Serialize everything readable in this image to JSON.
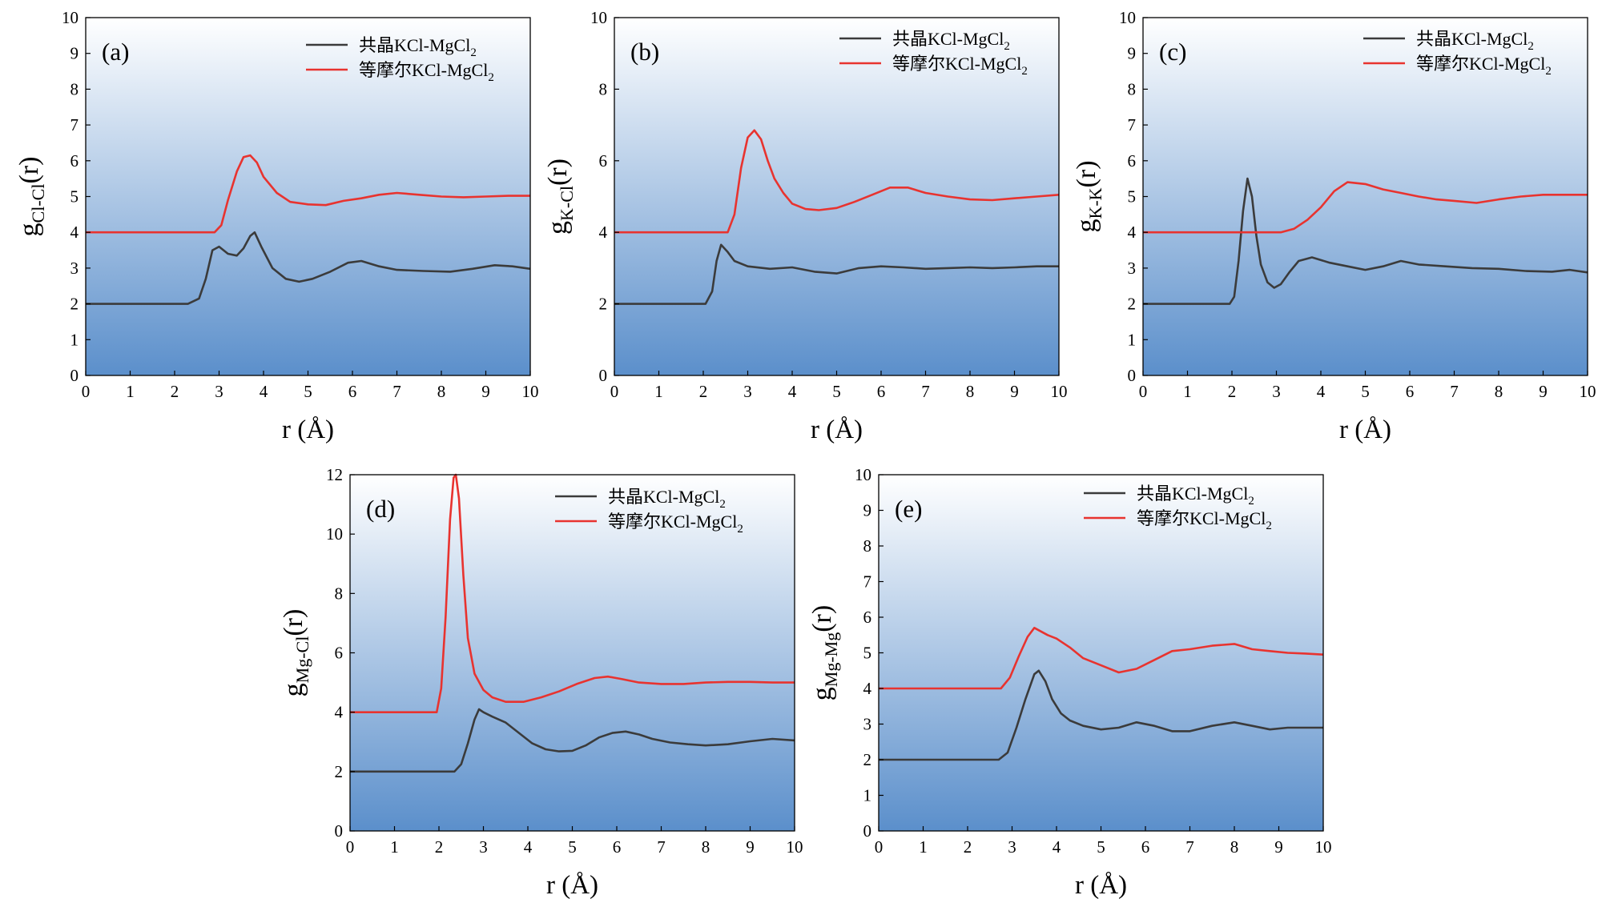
{
  "figure": {
    "legend": {
      "series_black": "共晶KCl-MgCl",
      "series_red": "等摩尔KCl-MgCl",
      "subscript": "2"
    },
    "colors": {
      "black": "#3b3b3b",
      "red": "#e8332f",
      "grad_top": "#ffffff",
      "grad_bottom": "#5b8fcb"
    }
  },
  "chart_data": [
    {
      "id": "a",
      "type": "line",
      "panel_label": "(a)",
      "xlabel": "r (Å)",
      "ylabel_main": "g",
      "ylabel_sub": "Cl-Cl",
      "ylabel_tail": "(r)",
      "xlim": [
        0,
        10
      ],
      "ylim": [
        0,
        10
      ],
      "xticks": [
        0,
        1,
        2,
        3,
        4,
        5,
        6,
        7,
        8,
        9,
        10
      ],
      "yticks": [
        0,
        1,
        2,
        3,
        4,
        5,
        6,
        7,
        8,
        9,
        10
      ],
      "legend_position": "top-right",
      "series": [
        {
          "name": "共晶KCl-MgCl2",
          "color": "black",
          "x": [
            0,
            2.3,
            2.55,
            2.7,
            2.85,
            3.0,
            3.2,
            3.4,
            3.55,
            3.7,
            3.8,
            3.95,
            4.2,
            4.5,
            4.8,
            5.1,
            5.5,
            5.9,
            6.2,
            6.6,
            7.0,
            7.6,
            8.2,
            8.7,
            9.2,
            9.6,
            10
          ],
          "y": [
            2,
            2,
            2.15,
            2.7,
            3.5,
            3.6,
            3.4,
            3.35,
            3.55,
            3.9,
            4.0,
            3.6,
            3.0,
            2.7,
            2.62,
            2.7,
            2.9,
            3.15,
            3.2,
            3.05,
            2.95,
            2.92,
            2.9,
            2.98,
            3.08,
            3.05,
            2.98
          ]
        },
        {
          "name": "等摩尔KCl-MgCl2",
          "color": "red",
          "x": [
            0,
            2.9,
            3.05,
            3.2,
            3.4,
            3.55,
            3.7,
            3.85,
            4.0,
            4.3,
            4.6,
            5.0,
            5.4,
            5.8,
            6.2,
            6.6,
            7.0,
            7.5,
            8.0,
            8.5,
            9.0,
            9.5,
            10
          ],
          "y": [
            4,
            4,
            4.2,
            4.9,
            5.7,
            6.1,
            6.15,
            5.95,
            5.55,
            5.1,
            4.85,
            4.78,
            4.76,
            4.88,
            4.95,
            5.05,
            5.1,
            5.05,
            5.0,
            4.98,
            5.0,
            5.02,
            5.02
          ]
        }
      ]
    },
    {
      "id": "b",
      "type": "line",
      "panel_label": "(b)",
      "xlabel": "r (Å)",
      "ylabel_main": "g",
      "ylabel_sub": "K-Cl",
      "ylabel_tail": "(r)",
      "xlim": [
        0,
        10
      ],
      "ylim": [
        0,
        10
      ],
      "xticks": [
        0,
        1,
        2,
        3,
        4,
        5,
        6,
        7,
        8,
        9,
        10
      ],
      "yticks": [
        0,
        2,
        4,
        6,
        8,
        10
      ],
      "legend_position": "top-right",
      "series": [
        {
          "name": "共晶KCl-MgCl2",
          "color": "black",
          "x": [
            0,
            2.05,
            2.2,
            2.3,
            2.4,
            2.55,
            2.7,
            3.0,
            3.5,
            4.0,
            4.5,
            5.0,
            5.5,
            6.0,
            6.5,
            7.0,
            7.5,
            8.0,
            8.5,
            9.0,
            9.5,
            10
          ],
          "y": [
            2,
            2,
            2.35,
            3.2,
            3.65,
            3.45,
            3.2,
            3.05,
            2.98,
            3.02,
            2.9,
            2.85,
            3.0,
            3.05,
            3.02,
            2.98,
            3.0,
            3.02,
            3.0,
            3.02,
            3.05,
            3.05
          ]
        },
        {
          "name": "等摩尔KCl-MgCl2",
          "color": "red",
          "x": [
            0,
            2.55,
            2.7,
            2.85,
            3.0,
            3.15,
            3.3,
            3.45,
            3.6,
            3.8,
            4.0,
            4.3,
            4.6,
            5.0,
            5.4,
            5.8,
            6.2,
            6.6,
            7.0,
            7.5,
            8.0,
            8.5,
            9.0,
            9.5,
            10
          ],
          "y": [
            4,
            4,
            4.5,
            5.8,
            6.65,
            6.85,
            6.6,
            6.0,
            5.5,
            5.1,
            4.8,
            4.65,
            4.62,
            4.68,
            4.85,
            5.05,
            5.25,
            5.25,
            5.1,
            5.0,
            4.92,
            4.9,
            4.95,
            5.0,
            5.05
          ]
        }
      ]
    },
    {
      "id": "c",
      "type": "line",
      "panel_label": "(c)",
      "xlabel": "r (Å)",
      "ylabel_main": "g",
      "ylabel_sub": "K-K",
      "ylabel_tail": "(r)",
      "xlim": [
        0,
        10
      ],
      "ylim": [
        0,
        10
      ],
      "xticks": [
        0,
        1,
        2,
        3,
        4,
        5,
        6,
        7,
        8,
        9,
        10
      ],
      "yticks": [
        0,
        1,
        2,
        3,
        4,
        5,
        6,
        7,
        8,
        9,
        10
      ],
      "legend_position": "top-right",
      "series": [
        {
          "name": "共晶KCl-MgCl2",
          "color": "black",
          "x": [
            0,
            1.95,
            2.05,
            2.15,
            2.25,
            2.35,
            2.45,
            2.55,
            2.65,
            2.8,
            2.95,
            3.1,
            3.3,
            3.5,
            3.8,
            4.2,
            4.6,
            5.0,
            5.4,
            5.8,
            6.2,
            6.8,
            7.4,
            8.0,
            8.6,
            9.2,
            9.6,
            10
          ],
          "y": [
            2,
            2,
            2.2,
            3.2,
            4.6,
            5.5,
            5.0,
            3.9,
            3.1,
            2.6,
            2.45,
            2.55,
            2.9,
            3.2,
            3.3,
            3.15,
            3.05,
            2.95,
            3.05,
            3.2,
            3.1,
            3.05,
            3.0,
            2.98,
            2.92,
            2.9,
            2.95,
            2.88
          ]
        },
        {
          "name": "等摩尔KCl-MgCl2",
          "color": "red",
          "x": [
            0,
            3.1,
            3.4,
            3.7,
            4.0,
            4.3,
            4.6,
            5.0,
            5.4,
            5.8,
            6.2,
            6.6,
            7.0,
            7.5,
            8.0,
            8.5,
            9.0,
            9.5,
            10
          ],
          "y": [
            4,
            4,
            4.1,
            4.35,
            4.7,
            5.15,
            5.4,
            5.35,
            5.2,
            5.1,
            5.0,
            4.92,
            4.88,
            4.82,
            4.92,
            5.0,
            5.05,
            5.05,
            5.05
          ]
        }
      ]
    },
    {
      "id": "d",
      "type": "line",
      "panel_label": "(d)",
      "xlabel": "r (Å)",
      "ylabel_main": "g",
      "ylabel_sub": "Mg-Cl",
      "ylabel_tail": "(r)",
      "xlim": [
        0,
        10
      ],
      "ylim": [
        0,
        12
      ],
      "xticks": [
        0,
        1,
        2,
        3,
        4,
        5,
        6,
        7,
        8,
        9,
        10
      ],
      "yticks": [
        0,
        2,
        4,
        6,
        8,
        10,
        12
      ],
      "legend_position": "top-right",
      "series": [
        {
          "name": "共晶KCl-MgCl2",
          "color": "black",
          "x": [
            0,
            2.35,
            2.5,
            2.65,
            2.8,
            2.9,
            3.0,
            3.2,
            3.5,
            3.8,
            4.1,
            4.4,
            4.7,
            5.0,
            5.3,
            5.6,
            5.9,
            6.2,
            6.5,
            6.8,
            7.2,
            7.6,
            8.0,
            8.5,
            9.0,
            9.5,
            10
          ],
          "y": [
            2,
            2,
            2.25,
            2.95,
            3.75,
            4.1,
            4.0,
            3.85,
            3.65,
            3.3,
            2.95,
            2.75,
            2.68,
            2.7,
            2.88,
            3.15,
            3.3,
            3.35,
            3.25,
            3.1,
            2.98,
            2.92,
            2.88,
            2.92,
            3.02,
            3.1,
            3.05
          ]
        },
        {
          "name": "等摩尔KCl-MgCl2",
          "color": "red",
          "x": [
            0,
            1.95,
            2.05,
            2.15,
            2.25,
            2.33,
            2.38,
            2.45,
            2.55,
            2.65,
            2.8,
            3.0,
            3.2,
            3.5,
            3.9,
            4.3,
            4.7,
            5.1,
            5.5,
            5.8,
            6.1,
            6.5,
            7.0,
            7.5,
            8.0,
            8.5,
            9.0,
            9.5,
            10
          ],
          "y": [
            4,
            4,
            4.8,
            7.2,
            10.5,
            11.9,
            12.0,
            11.2,
            8.6,
            6.5,
            5.3,
            4.75,
            4.5,
            4.35,
            4.35,
            4.5,
            4.7,
            4.95,
            5.15,
            5.2,
            5.12,
            5.0,
            4.95,
            4.95,
            5.0,
            5.02,
            5.02,
            5.0,
            5.0
          ]
        }
      ]
    },
    {
      "id": "e",
      "type": "line",
      "panel_label": "(e)",
      "xlabel": "r (Å)",
      "ylabel_main": "g",
      "ylabel_sub": "Mg-Mg",
      "ylabel_tail": "(r)",
      "xlim": [
        0,
        10
      ],
      "ylim": [
        0,
        10
      ],
      "xticks": [
        0,
        1,
        2,
        3,
        4,
        5,
        6,
        7,
        8,
        9,
        10
      ],
      "yticks": [
        0,
        1,
        2,
        3,
        4,
        5,
        6,
        7,
        8,
        9,
        10
      ],
      "legend_position": "top-right",
      "series": [
        {
          "name": "共晶KCl-MgCl2",
          "color": "black",
          "x": [
            0,
            2.7,
            2.9,
            3.1,
            3.3,
            3.5,
            3.6,
            3.75,
            3.9,
            4.1,
            4.3,
            4.6,
            5.0,
            5.4,
            5.8,
            6.2,
            6.6,
            7.0,
            7.5,
            8.0,
            8.4,
            8.8,
            9.2,
            9.6,
            10
          ],
          "y": [
            2,
            2,
            2.2,
            2.9,
            3.7,
            4.4,
            4.5,
            4.2,
            3.7,
            3.3,
            3.1,
            2.95,
            2.85,
            2.9,
            3.05,
            2.95,
            2.8,
            2.8,
            2.95,
            3.05,
            2.95,
            2.85,
            2.9,
            2.9,
            2.9
          ]
        },
        {
          "name": "等摩尔KCl-MgCl2",
          "color": "red",
          "x": [
            0,
            2.75,
            2.95,
            3.15,
            3.35,
            3.5,
            3.65,
            3.8,
            4.0,
            4.3,
            4.6,
            5.0,
            5.4,
            5.8,
            6.2,
            6.6,
            7.0,
            7.5,
            8.0,
            8.4,
            8.8,
            9.2,
            9.6,
            10
          ],
          "y": [
            4,
            4,
            4.3,
            4.9,
            5.45,
            5.7,
            5.6,
            5.5,
            5.4,
            5.15,
            4.85,
            4.65,
            4.45,
            4.55,
            4.8,
            5.05,
            5.1,
            5.2,
            5.25,
            5.1,
            5.05,
            5.0,
            4.98,
            4.95
          ]
        }
      ]
    }
  ]
}
